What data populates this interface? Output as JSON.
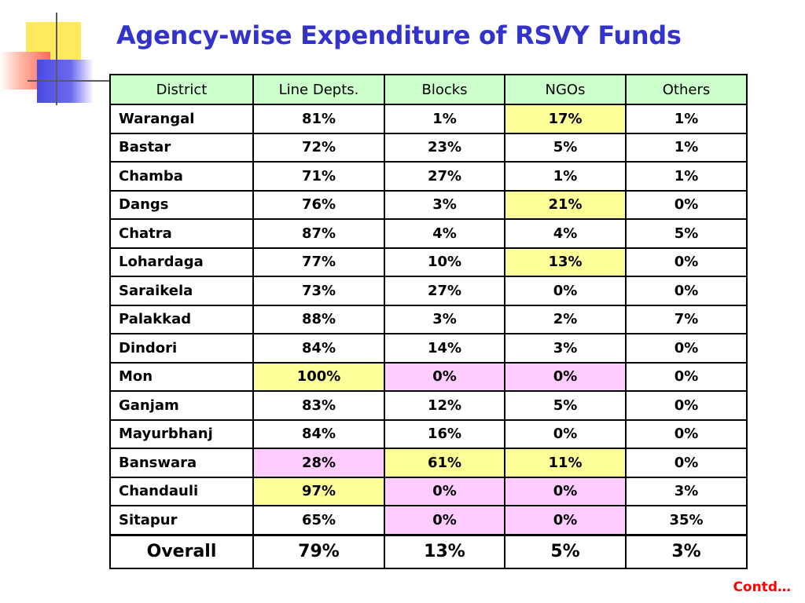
{
  "slide": {
    "title": "Agency-wise Expenditure of RSVY Funds",
    "footer_note": "Contd…"
  },
  "colors": {
    "title": "#3333cc",
    "header_bg": "#ccffcc",
    "highlight_yellow": "#ffff99",
    "highlight_pink": "#ffccff",
    "footer_note": "#ff0000"
  },
  "table": {
    "headers": [
      "District",
      "Line Depts.",
      "Blocks",
      "NGOs",
      "Others"
    ],
    "rows": [
      {
        "district": "Warangal",
        "values": [
          "81%",
          "1%",
          "17%",
          "1%"
        ],
        "highlight": [
          "",
          "",
          "yellow",
          ""
        ]
      },
      {
        "district": "Bastar",
        "values": [
          "72%",
          "23%",
          "5%",
          "1%"
        ],
        "highlight": [
          "",
          "",
          "",
          ""
        ]
      },
      {
        "district": "Chamba",
        "values": [
          "71%",
          "27%",
          "1%",
          "1%"
        ],
        "highlight": [
          "",
          "",
          "",
          ""
        ]
      },
      {
        "district": "Dangs",
        "values": [
          "76%",
          "3%",
          "21%",
          "0%"
        ],
        "highlight": [
          "",
          "",
          "yellow",
          ""
        ]
      },
      {
        "district": "Chatra",
        "values": [
          "87%",
          "4%",
          "4%",
          "5%"
        ],
        "highlight": [
          "",
          "",
          "",
          ""
        ]
      },
      {
        "district": "Lohardaga",
        "values": [
          "77%",
          "10%",
          "13%",
          "0%"
        ],
        "highlight": [
          "",
          "",
          "yellow",
          ""
        ]
      },
      {
        "district": "Saraikela",
        "values": [
          "73%",
          "27%",
          "0%",
          "0%"
        ],
        "highlight": [
          "",
          "",
          "",
          ""
        ]
      },
      {
        "district": "Palakkad",
        "values": [
          "88%",
          "3%",
          "2%",
          "7%"
        ],
        "highlight": [
          "",
          "",
          "",
          ""
        ]
      },
      {
        "district": "Dindori",
        "values": [
          "84%",
          "14%",
          "3%",
          "0%"
        ],
        "highlight": [
          "",
          "",
          "",
          ""
        ]
      },
      {
        "district": "Mon",
        "values": [
          "100%",
          "0%",
          "0%",
          "0%"
        ],
        "highlight": [
          "yellow",
          "pink",
          "pink",
          ""
        ]
      },
      {
        "district": "Ganjam",
        "values": [
          "83%",
          "12%",
          "5%",
          "0%"
        ],
        "highlight": [
          "",
          "",
          "",
          ""
        ]
      },
      {
        "district": "Mayurbhanj",
        "values": [
          "84%",
          "16%",
          "0%",
          "0%"
        ],
        "highlight": [
          "",
          "",
          "",
          ""
        ]
      },
      {
        "district": "Banswara",
        "values": [
          "28%",
          "61%",
          "11%",
          "0%"
        ],
        "highlight": [
          "pink",
          "yellow",
          "yellow",
          ""
        ]
      },
      {
        "district": "Chandauli",
        "values": [
          "97%",
          "0%",
          "0%",
          "3%"
        ],
        "highlight": [
          "yellow",
          "pink",
          "pink",
          ""
        ]
      },
      {
        "district": "Sitapur",
        "values": [
          "65%",
          "0%",
          "0%",
          "35%"
        ],
        "highlight": [
          "",
          "pink",
          "pink",
          ""
        ]
      }
    ],
    "overall": {
      "label": "Overall",
      "values": [
        "79%",
        "13%",
        "5%",
        "3%"
      ]
    }
  }
}
